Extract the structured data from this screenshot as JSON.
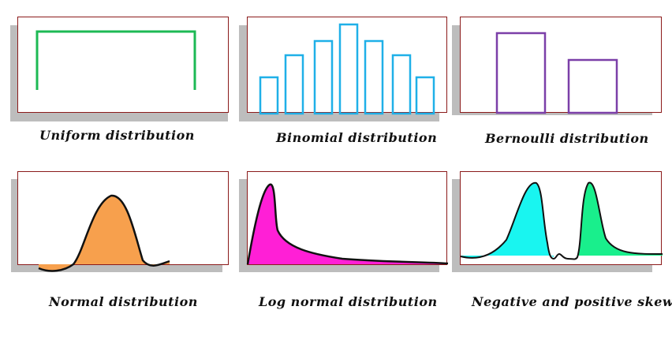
{
  "panels": [
    {
      "caption": "Uniform distribution",
      "color": "#1db954"
    },
    {
      "caption": "Binomial distribution",
      "color": "#1fb0e8"
    },
    {
      "caption": "Bernoulli distribution",
      "color": "#7b3fa8"
    },
    {
      "caption": "Normal distribution",
      "color": "#f7a04d"
    },
    {
      "caption": "Log normal distribution",
      "color": "#ff1fd6"
    },
    {
      "caption": "Negative and positive skew",
      "colors": [
        "#19f5f0",
        "#19ef8c"
      ]
    }
  ],
  "frame_color": "#8b1a1a",
  "binomial_relative_heights": [
    0.38,
    0.62,
    0.78,
    0.95,
    0.78,
    0.62,
    0.38
  ],
  "bernoulli_relative_heights": [
    0.98,
    0.62
  ]
}
